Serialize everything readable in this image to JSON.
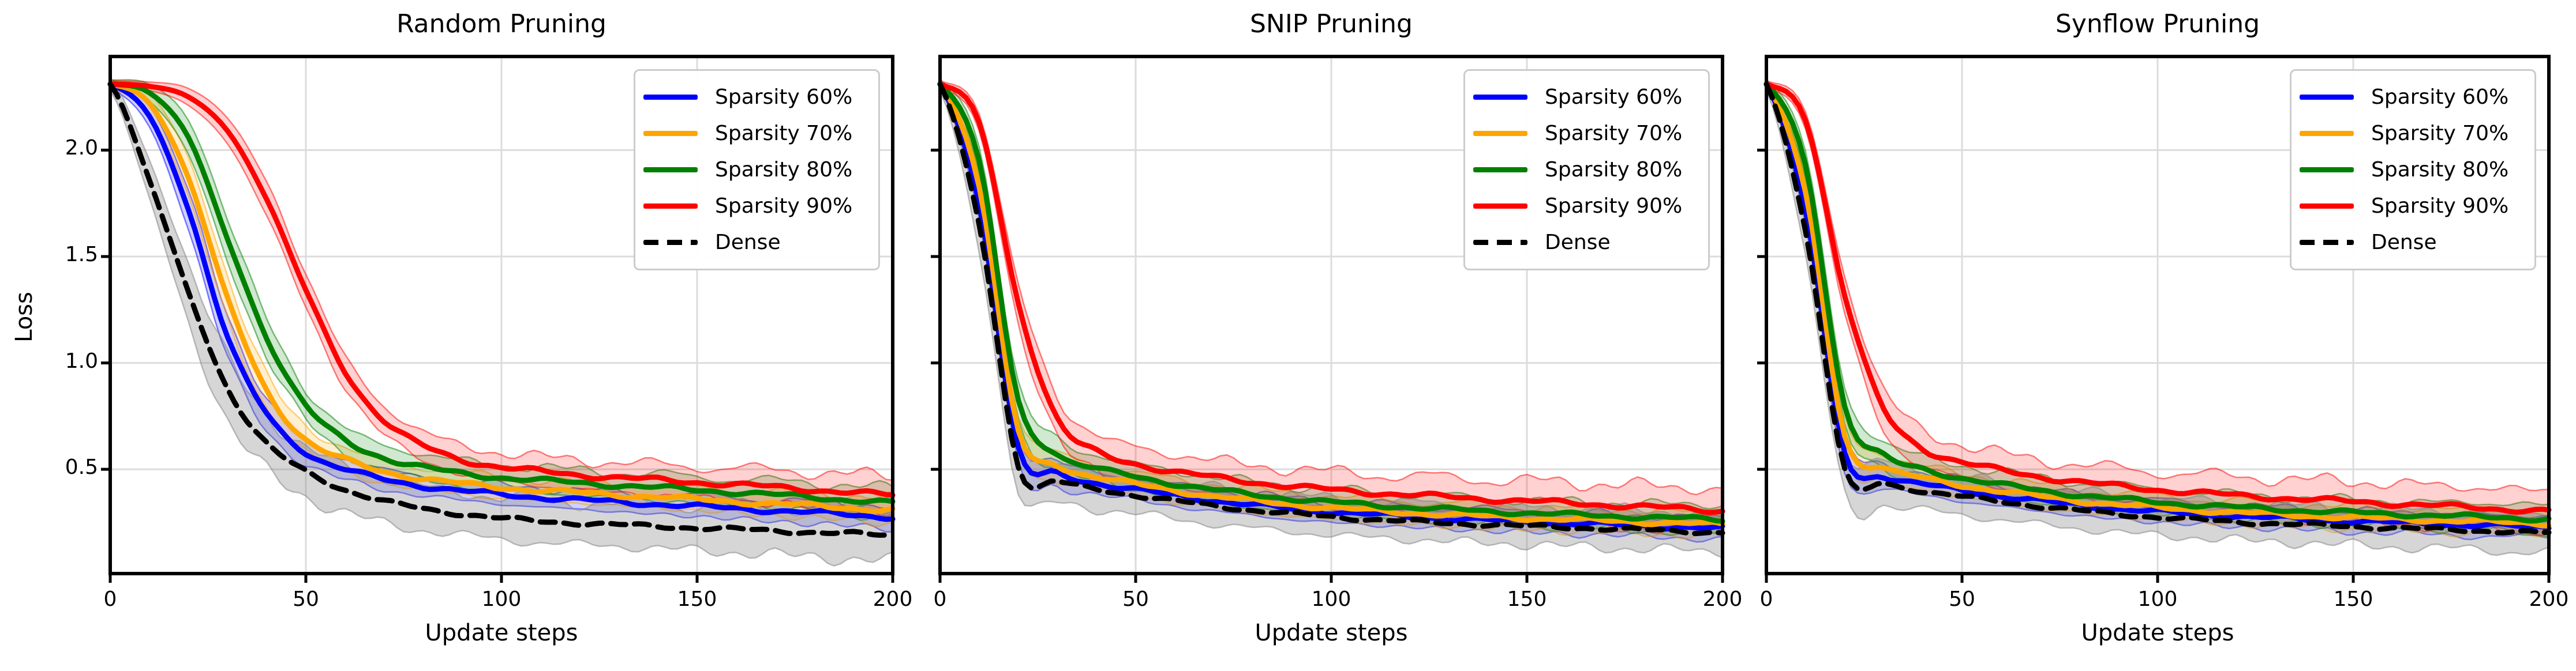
{
  "chart_data": [
    {
      "type": "line",
      "title": "Random Pruning",
      "xlabel": "Update steps",
      "ylabel": "Loss",
      "xlim": [
        0,
        200
      ],
      "ylim": [
        0.01,
        2.44
      ],
      "xticks": [
        0,
        50,
        100,
        150,
        200
      ],
      "xtick_labels": [
        "0",
        "50",
        "100",
        "150",
        "200"
      ],
      "yticks": [
        0.5,
        1.0,
        1.5,
        2.0
      ],
      "ytick_labels": [
        "0.5",
        "1.0",
        "1.5",
        "2.0"
      ],
      "grid": true,
      "legend_loc": "upper right",
      "x": [
        0,
        10,
        20,
        30,
        40,
        50,
        60,
        70,
        80,
        90,
        100,
        110,
        120,
        130,
        140,
        150,
        160,
        170,
        180,
        190,
        200
      ],
      "series": [
        {
          "name": "Sparsity 60%",
          "color": "#0000FF",
          "style": "solid",
          "jitter": 0.013,
          "values": [
            2.31,
            2.16,
            1.72,
            1.12,
            0.76,
            0.58,
            0.5,
            0.452,
            0.422,
            0.398,
            0.382,
            0.368,
            0.356,
            0.346,
            0.336,
            0.326,
            0.316,
            0.306,
            0.296,
            0.286,
            0.276
          ],
          "band": [
            0.02,
            0.05,
            0.09,
            0.1,
            0.075,
            0.055,
            0.05,
            0.047,
            0.045,
            0.045,
            0.045,
            0.045,
            0.045,
            0.046,
            0.047,
            0.048,
            0.05,
            0.05,
            0.052,
            0.054,
            0.055
          ]
        },
        {
          "name": "Sparsity 70%",
          "color": "#FFA500",
          "style": "solid",
          "jitter": 0.013,
          "values": [
            2.31,
            2.22,
            1.87,
            1.3,
            0.87,
            0.64,
            0.545,
            0.49,
            0.456,
            0.432,
            0.415,
            0.401,
            0.39,
            0.38,
            0.37,
            0.358,
            0.348,
            0.338,
            0.328,
            0.318,
            0.308
          ],
          "band": [
            0.02,
            0.05,
            0.09,
            0.105,
            0.08,
            0.06,
            0.055,
            0.052,
            0.05,
            0.05,
            0.05,
            0.05,
            0.05,
            0.051,
            0.052,
            0.053,
            0.054,
            0.056,
            0.058,
            0.06,
            0.062
          ]
        },
        {
          "name": "Sparsity 80%",
          "color": "#008000",
          "style": "solid",
          "jitter": 0.013,
          "values": [
            2.31,
            2.27,
            2.06,
            1.58,
            1.12,
            0.8,
            0.635,
            0.555,
            0.51,
            0.48,
            0.462,
            0.448,
            0.436,
            0.425,
            0.414,
            0.403,
            0.392,
            0.38,
            0.368,
            0.355,
            0.342
          ],
          "band": [
            0.02,
            0.04,
            0.08,
            0.1,
            0.09,
            0.068,
            0.062,
            0.06,
            0.06,
            0.06,
            0.06,
            0.06,
            0.06,
            0.06,
            0.061,
            0.062,
            0.063,
            0.065,
            0.067,
            0.069,
            0.07
          ]
        },
        {
          "name": "Sparsity 90%",
          "color": "#FF0000",
          "style": "solid",
          "jitter": 0.014,
          "values": [
            2.31,
            2.3,
            2.25,
            2.09,
            1.77,
            1.34,
            0.96,
            0.73,
            0.61,
            0.545,
            0.51,
            0.49,
            0.474,
            0.461,
            0.45,
            0.439,
            0.428,
            0.416,
            0.404,
            0.391,
            0.378
          ],
          "band": [
            0.015,
            0.02,
            0.04,
            0.06,
            0.08,
            0.078,
            0.072,
            0.068,
            0.066,
            0.066,
            0.068,
            0.068,
            0.07,
            0.071,
            0.072,
            0.074,
            0.076,
            0.08,
            0.083,
            0.086,
            0.09
          ]
        },
        {
          "name": "Dense",
          "color": "#000000",
          "band_color": "#808080",
          "style": "dashed",
          "jitter": 0.011,
          "values": [
            2.31,
            1.86,
            1.33,
            0.88,
            0.62,
            0.49,
            0.405,
            0.35,
            0.315,
            0.29,
            0.27,
            0.256,
            0.247,
            0.239,
            0.232,
            0.225,
            0.218,
            0.211,
            0.204,
            0.197,
            0.19
          ],
          "band": [
            0.03,
            0.09,
            0.14,
            0.15,
            0.13,
            0.115,
            0.11,
            0.105,
            0.1,
            0.1,
            0.1,
            0.1,
            0.1,
            0.1,
            0.103,
            0.106,
            0.109,
            0.112,
            0.115,
            0.118,
            0.12
          ]
        }
      ]
    },
    {
      "type": "line",
      "title": "SNIP Pruning",
      "xlabel": "Update steps",
      "ylabel": "Loss",
      "xlim": [
        0,
        200
      ],
      "ylim": [
        0.01,
        2.44
      ],
      "xticks": [
        0,
        50,
        100,
        150,
        200
      ],
      "xtick_labels": [
        "0",
        "50",
        "100",
        "150",
        "200"
      ],
      "yticks": [
        0.5,
        1.0,
        1.5,
        2.0
      ],
      "ytick_labels": [
        "0.5",
        "1.0",
        "1.5",
        "2.0"
      ],
      "grid": true,
      "legend_loc": "upper right",
      "x": [
        0,
        10,
        20,
        30,
        40,
        50,
        60,
        70,
        80,
        90,
        100,
        110,
        120,
        130,
        140,
        150,
        160,
        170,
        180,
        190,
        200
      ],
      "series": [
        {
          "name": "Sparsity 60%",
          "color": "#0000FF",
          "style": "solid",
          "jitter": 0.012,
          "values": [
            2.31,
            1.75,
            0.6,
            0.48,
            0.435,
            0.405,
            0.378,
            0.353,
            0.332,
            0.314,
            0.3,
            0.288,
            0.278,
            0.269,
            0.261,
            0.254,
            0.247,
            0.241,
            0.234,
            0.228,
            0.222
          ],
          "band": [
            0.02,
            0.07,
            0.08,
            0.06,
            0.052,
            0.05,
            0.05,
            0.05,
            0.05,
            0.05,
            0.05,
            0.05,
            0.05,
            0.05,
            0.05,
            0.05,
            0.05,
            0.05,
            0.05,
            0.05,
            0.05
          ]
        },
        {
          "name": "Sparsity 70%",
          "color": "#FFA500",
          "style": "solid",
          "jitter": 0.012,
          "values": [
            2.31,
            1.83,
            0.68,
            0.52,
            0.465,
            0.43,
            0.4,
            0.374,
            0.352,
            0.334,
            0.319,
            0.306,
            0.295,
            0.286,
            0.278,
            0.27,
            0.264,
            0.258,
            0.252,
            0.246,
            0.24
          ],
          "band": [
            0.02,
            0.07,
            0.085,
            0.065,
            0.056,
            0.055,
            0.055,
            0.055,
            0.055,
            0.055,
            0.055,
            0.055,
            0.055,
            0.055,
            0.055,
            0.055,
            0.055,
            0.055,
            0.055,
            0.055,
            0.055
          ]
        },
        {
          "name": "Sparsity 80%",
          "color": "#008000",
          "style": "solid",
          "jitter": 0.012,
          "values": [
            2.31,
            1.95,
            0.82,
            0.575,
            0.505,
            0.465,
            0.432,
            0.404,
            0.381,
            0.362,
            0.346,
            0.333,
            0.322,
            0.312,
            0.303,
            0.295,
            0.288,
            0.282,
            0.276,
            0.27,
            0.264
          ],
          "band": [
            0.02,
            0.065,
            0.085,
            0.07,
            0.06,
            0.06,
            0.06,
            0.06,
            0.06,
            0.06,
            0.06,
            0.06,
            0.06,
            0.06,
            0.06,
            0.06,
            0.061,
            0.062,
            0.064,
            0.066,
            0.068
          ]
        },
        {
          "name": "Sparsity 90%",
          "color": "#FF0000",
          "style": "solid",
          "jitter": 0.014,
          "values": [
            2.31,
            2.13,
            1.28,
            0.74,
            0.58,
            0.525,
            0.49,
            0.462,
            0.44,
            0.42,
            0.404,
            0.391,
            0.38,
            0.37,
            0.36,
            0.351,
            0.342,
            0.333,
            0.324,
            0.315,
            0.306
          ],
          "band": [
            0.015,
            0.04,
            0.09,
            0.095,
            0.085,
            0.08,
            0.08,
            0.08,
            0.08,
            0.082,
            0.084,
            0.086,
            0.088,
            0.09,
            0.092,
            0.094,
            0.096,
            0.098,
            0.1,
            0.1,
            0.1
          ]
        },
        {
          "name": "Dense",
          "color": "#000000",
          "band_color": "#808080",
          "style": "dashed",
          "jitter": 0.01,
          "values": [
            2.31,
            1.65,
            0.52,
            0.445,
            0.405,
            0.378,
            0.352,
            0.328,
            0.308,
            0.291,
            0.277,
            0.265,
            0.255,
            0.247,
            0.24,
            0.233,
            0.227,
            0.221,
            0.215,
            0.209,
            0.203
          ],
          "band": [
            0.03,
            0.12,
            0.12,
            0.1,
            0.09,
            0.087,
            0.085,
            0.085,
            0.085,
            0.085,
            0.085,
            0.085,
            0.085,
            0.085,
            0.086,
            0.087,
            0.088,
            0.089,
            0.09,
            0.09,
            0.09
          ]
        }
      ]
    },
    {
      "type": "line",
      "title": "Synflow Pruning",
      "xlabel": "Update steps",
      "ylabel": "Loss",
      "xlim": [
        0,
        200
      ],
      "ylim": [
        0.01,
        2.44
      ],
      "xticks": [
        0,
        50,
        100,
        150,
        200
      ],
      "xtick_labels": [
        "0",
        "50",
        "100",
        "150",
        "200"
      ],
      "yticks": [
        0.5,
        1.0,
        1.5,
        2.0
      ],
      "ytick_labels": [
        "0.5",
        "1.0",
        "1.5",
        "2.0"
      ],
      "grid": true,
      "legend_loc": "upper right",
      "x": [
        0,
        10,
        20,
        30,
        40,
        50,
        60,
        70,
        80,
        90,
        100,
        110,
        120,
        130,
        140,
        150,
        160,
        170,
        180,
        190,
        200
      ],
      "series": [
        {
          "name": "Sparsity 60%",
          "color": "#0000FF",
          "style": "solid",
          "jitter": 0.012,
          "values": [
            2.31,
            1.72,
            0.58,
            0.47,
            0.43,
            0.4,
            0.375,
            0.352,
            0.332,
            0.315,
            0.301,
            0.29,
            0.28,
            0.271,
            0.263,
            0.256,
            0.25,
            0.244,
            0.238,
            0.233,
            0.228
          ],
          "band": [
            0.02,
            0.07,
            0.08,
            0.06,
            0.052,
            0.05,
            0.05,
            0.05,
            0.05,
            0.05,
            0.05,
            0.05,
            0.05,
            0.05,
            0.05,
            0.05,
            0.05,
            0.05,
            0.05,
            0.05,
            0.05
          ]
        },
        {
          "name": "Sparsity 70%",
          "color": "#FFA500",
          "style": "solid",
          "jitter": 0.012,
          "values": [
            2.31,
            1.8,
            0.66,
            0.51,
            0.458,
            0.425,
            0.397,
            0.372,
            0.351,
            0.334,
            0.32,
            0.308,
            0.297,
            0.288,
            0.28,
            0.273,
            0.267,
            0.261,
            0.255,
            0.25,
            0.245
          ],
          "band": [
            0.02,
            0.07,
            0.085,
            0.065,
            0.056,
            0.055,
            0.055,
            0.055,
            0.055,
            0.055,
            0.055,
            0.055,
            0.055,
            0.055,
            0.055,
            0.055,
            0.055,
            0.055,
            0.055,
            0.055,
            0.055
          ]
        },
        {
          "name": "Sparsity 80%",
          "color": "#008000",
          "style": "solid",
          "jitter": 0.012,
          "values": [
            2.31,
            1.93,
            0.8,
            0.565,
            0.5,
            0.46,
            0.428,
            0.401,
            0.379,
            0.361,
            0.346,
            0.333,
            0.322,
            0.313,
            0.304,
            0.297,
            0.29,
            0.284,
            0.278,
            0.272,
            0.266
          ],
          "band": [
            0.02,
            0.065,
            0.085,
            0.07,
            0.06,
            0.06,
            0.06,
            0.06,
            0.06,
            0.06,
            0.06,
            0.06,
            0.06,
            0.06,
            0.06,
            0.06,
            0.061,
            0.062,
            0.064,
            0.066,
            0.068
          ]
        },
        {
          "name": "Sparsity 90%",
          "color": "#FF0000",
          "style": "solid",
          "jitter": 0.014,
          "values": [
            2.31,
            2.14,
            1.32,
            0.78,
            0.6,
            0.535,
            0.495,
            0.465,
            0.441,
            0.421,
            0.404,
            0.39,
            0.378,
            0.367,
            0.357,
            0.348,
            0.339,
            0.33,
            0.321,
            0.312,
            0.303
          ],
          "band": [
            0.015,
            0.04,
            0.09,
            0.095,
            0.085,
            0.08,
            0.08,
            0.08,
            0.08,
            0.082,
            0.084,
            0.086,
            0.088,
            0.09,
            0.092,
            0.094,
            0.095,
            0.095,
            0.095,
            0.095,
            0.095
          ]
        },
        {
          "name": "Dense",
          "color": "#000000",
          "band_color": "#808080",
          "style": "dashed",
          "jitter": 0.01,
          "values": [
            2.31,
            1.62,
            0.5,
            0.435,
            0.398,
            0.372,
            0.348,
            0.326,
            0.306,
            0.289,
            0.275,
            0.263,
            0.253,
            0.245,
            0.238,
            0.231,
            0.225,
            0.219,
            0.213,
            0.207,
            0.201
          ],
          "band": [
            0.03,
            0.12,
            0.12,
            0.1,
            0.09,
            0.087,
            0.085,
            0.085,
            0.085,
            0.085,
            0.085,
            0.085,
            0.085,
            0.085,
            0.086,
            0.087,
            0.088,
            0.089,
            0.09,
            0.09,
            0.09
          ]
        }
      ]
    }
  ]
}
